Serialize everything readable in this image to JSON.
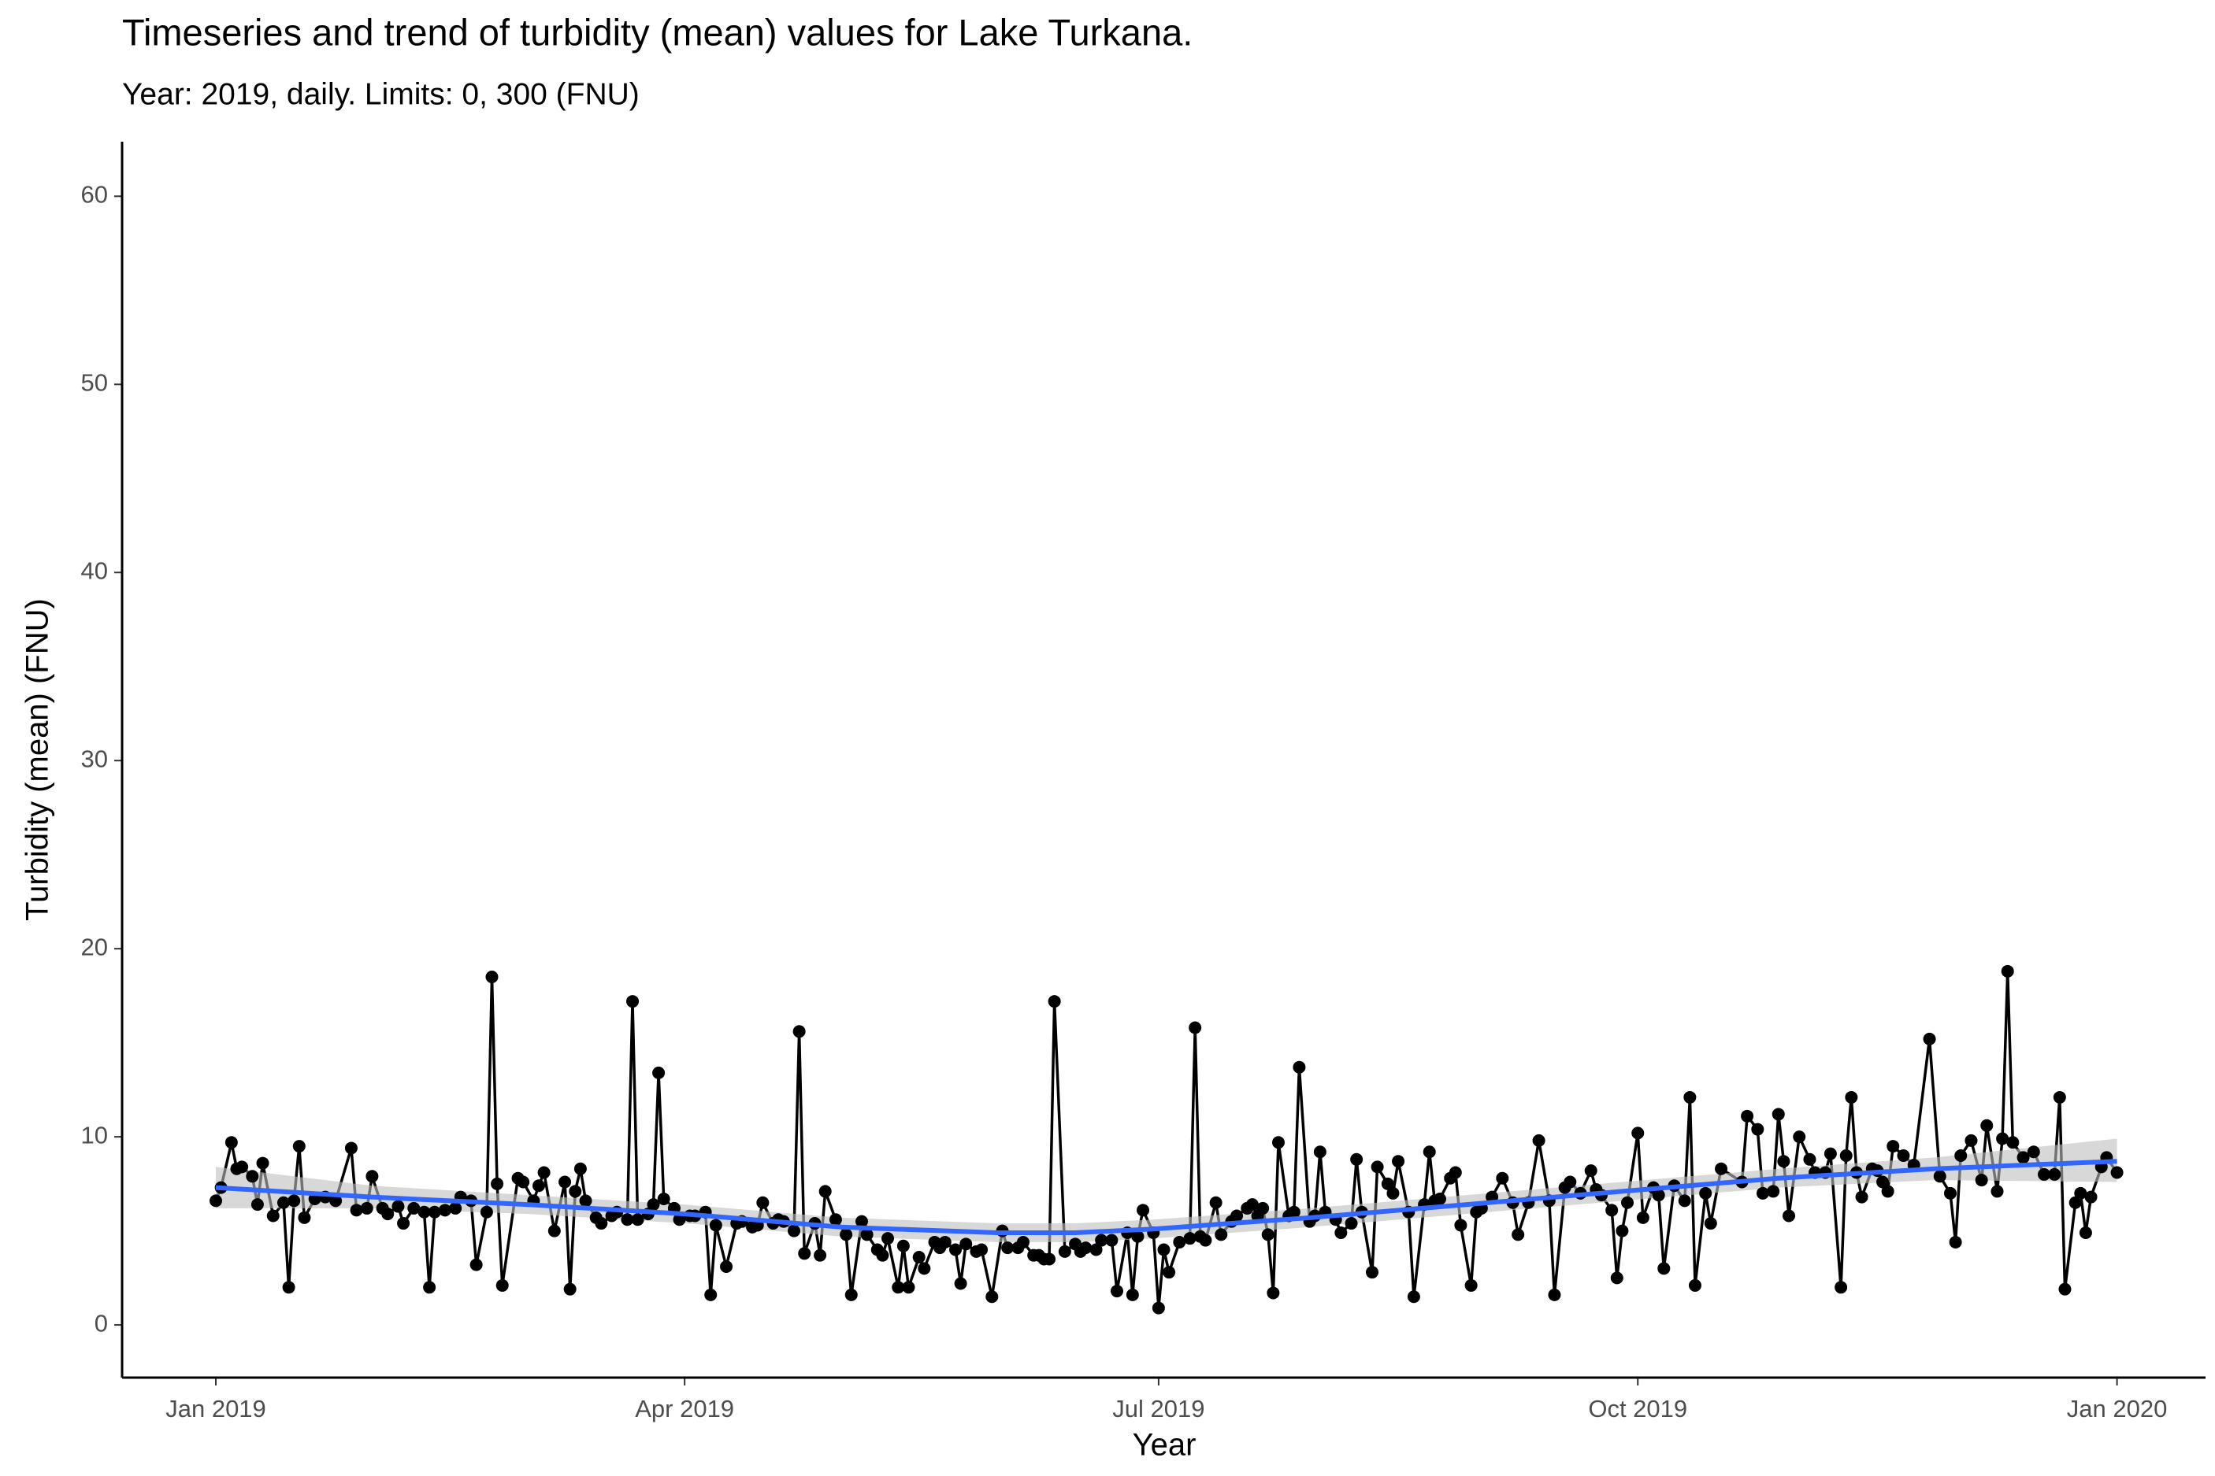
{
  "chart_data": {
    "type": "line",
    "title": "Timeseries and trend of turbidity (mean) values for Lake Turkana.",
    "subtitle": "Year: 2019, daily. Limits: 0, 300 (FNU)",
    "x_label": "Year",
    "y_label": "Turbidity (mean) (FNU)",
    "color": "#000000",
    "x": [
      0,
      1,
      3,
      4,
      5,
      7,
      8,
      9,
      11,
      13,
      14,
      15,
      16,
      17,
      19,
      21,
      23,
      26,
      27,
      29,
      30,
      32,
      33,
      35,
      36,
      38,
      40,
      41,
      42,
      44,
      46,
      47,
      49,
      50,
      52,
      53,
      54,
      55,
      58,
      59,
      61,
      62,
      63,
      65,
      67,
      68,
      69,
      70,
      71,
      73,
      74,
      76,
      77,
      79,
      80,
      81,
      83,
      84,
      85,
      86,
      88,
      89,
      91,
      92,
      94,
      95,
      96,
      98,
      100,
      101,
      103,
      104,
      105,
      107,
      108,
      109,
      111,
      112,
      113,
      115,
      116,
      117,
      119,
      121,
      122,
      124,
      125,
      127,
      128,
      129,
      131,
      132,
      133,
      135,
      136,
      138,
      139,
      140,
      142,
      143,
      144,
      146,
      147,
      149,
      151,
      152,
      154,
      155,
      157,
      158,
      159,
      160,
      161,
      163,
      165,
      166,
      167,
      169,
      170,
      172,
      173,
      175,
      176,
      177,
      178,
      180,
      181,
      182,
      183,
      185,
      187,
      188,
      189,
      190,
      192,
      193,
      195,
      196,
      198,
      199,
      200,
      201,
      202,
      203,
      204,
      206,
      207,
      208,
      210,
      211,
      212,
      213,
      215,
      216,
      218,
      219,
      220,
      222,
      223,
      225,
      226,
      227,
      229,
      230,
      232,
      233,
      234,
      235,
      237,
      238,
      239,
      241,
      242,
      243,
      245,
      247,
      249,
      250,
      252,
      254,
      256,
      257,
      259,
      260,
      262,
      264,
      265,
      266,
      268,
      269,
      270,
      271,
      273,
      274,
      276,
      277,
      278,
      280,
      282,
      283,
      284,
      286,
      287,
      289,
      293,
      294,
      296,
      297,
      299,
      300,
      301,
      302,
      304,
      306,
      307,
      309,
      310,
      312,
      313,
      314,
      315,
      316,
      318,
      319,
      320,
      321,
      322,
      324,
      326,
      329,
      331,
      333,
      334,
      335,
      337,
      339,
      340,
      342,
      343,
      344,
      345,
      347,
      349,
      351,
      353,
      354,
      355,
      357,
      358,
      359,
      360,
      362,
      363,
      365
    ],
    "values": [
      6.6,
      7.3,
      9.7,
      8.3,
      8.4,
      7.9,
      6.4,
      8.6,
      5.8,
      6.5,
      2.0,
      6.6,
      9.5,
      5.7,
      6.7,
      6.8,
      6.6,
      9.4,
      6.1,
      6.2,
      7.9,
      6.2,
      5.9,
      6.3,
      5.4,
      6.2,
      6.0,
      2.0,
      6.0,
      6.1,
      6.2,
      6.8,
      6.6,
      3.2,
      6.0,
      18.5,
      7.5,
      2.1,
      7.8,
      7.6,
      6.6,
      7.4,
      8.1,
      5.0,
      7.6,
      1.9,
      7.1,
      8.3,
      6.6,
      5.7,
      5.4,
      5.8,
      6.0,
      5.6,
      17.2,
      5.6,
      5.9,
      6.4,
      13.4,
      6.7,
      6.2,
      5.6,
      5.8,
      5.8,
      6.0,
      1.6,
      5.3,
      3.1,
      5.4,
      5.5,
      5.2,
      5.3,
      6.5,
      5.4,
      5.6,
      5.5,
      5.0,
      15.6,
      3.8,
      5.4,
      3.7,
      7.1,
      5.6,
      4.8,
      1.6,
      5.5,
      4.8,
      4.0,
      3.7,
      4.6,
      2.0,
      4.2,
      2.0,
      3.6,
      3.0,
      4.4,
      4.1,
      4.4,
      4.0,
      2.2,
      4.3,
      3.9,
      4.0,
      1.5,
      5.0,
      4.1,
      4.1,
      4.4,
      3.7,
      3.7,
      3.5,
      3.5,
      17.2,
      3.9,
      4.3,
      3.9,
      4.1,
      4.0,
      4.5,
      4.5,
      1.8,
      4.9,
      1.6,
      4.7,
      6.1,
      4.9,
      0.9,
      4.0,
      2.8,
      4.4,
      4.6,
      15.8,
      4.7,
      4.5,
      6.5,
      4.8,
      5.5,
      5.8,
      6.2,
      6.4,
      5.8,
      6.2,
      4.8,
      1.7,
      9.7,
      5.8,
      6.0,
      13.7,
      5.5,
      5.8,
      9.2,
      6.0,
      5.6,
      4.9,
      5.4,
      8.8,
      6.0,
      2.8,
      8.4,
      7.5,
      7.0,
      8.7,
      6.0,
      1.5,
      6.4,
      9.2,
      6.6,
      6.7,
      7.8,
      8.1,
      5.3,
      2.1,
      6.0,
      6.2,
      6.8,
      7.8,
      6.5,
      4.8,
      6.5,
      9.8,
      6.6,
      1.6,
      7.3,
      7.6,
      7.0,
      8.2,
      7.2,
      6.9,
      6.1,
      2.5,
      5.0,
      6.5,
      10.2,
      5.7,
      7.3,
      6.9,
      3.0,
      7.4,
      6.6,
      12.1,
      2.1,
      7.0,
      5.4,
      8.3,
      7.6,
      11.1,
      10.4,
      7.0,
      7.1,
      11.2,
      8.7,
      5.8,
      10.0,
      8.8,
      8.1,
      8.1,
      9.1,
      2.0,
      9.0,
      12.1,
      8.1,
      6.8,
      8.3,
      8.2,
      7.6,
      7.1,
      9.5,
      9.0,
      8.5,
      15.2,
      7.9,
      7.0,
      4.4,
      9.0,
      9.8,
      7.7,
      10.6,
      7.1,
      9.9,
      18.8,
      9.7,
      8.9,
      9.2,
      8.0,
      8.0,
      12.1,
      1.9,
      6.5,
      7.0,
      4.9,
      6.8,
      8.4,
      8.9,
      8.1
    ],
    "trend": {
      "color": "#3366ff",
      "band_color": "#bebebe",
      "x": [
        0,
        30,
        60,
        90,
        120,
        150,
        165,
        180,
        210,
        240,
        270,
        300,
        330,
        365
      ],
      "values": [
        7.3,
        6.8,
        6.4,
        5.9,
        5.2,
        4.9,
        4.9,
        5.1,
        5.7,
        6.4,
        7.1,
        7.8,
        8.3,
        8.7
      ],
      "lower": [
        6.2,
        6.2,
        5.9,
        5.4,
        4.7,
        4.4,
        4.4,
        4.6,
        5.2,
        5.9,
        6.6,
        7.3,
        7.7,
        7.6
      ],
      "upper": [
        8.4,
        7.4,
        6.9,
        6.4,
        5.7,
        5.4,
        5.4,
        5.6,
        6.2,
        6.9,
        7.6,
        8.3,
        8.9,
        9.9
      ]
    },
    "xlim": [
      -18,
      382
    ],
    "ylim": [
      -2.8,
      62.9
    ],
    "xticks": [
      {
        "value": 0,
        "label": "Jan 2019"
      },
      {
        "value": 90,
        "label": "Apr 2019"
      },
      {
        "value": 181,
        "label": "Jul 2019"
      },
      {
        "value": 273,
        "label": "Oct 2019"
      },
      {
        "value": 365,
        "label": "Jan 2020"
      }
    ],
    "yticks": [
      0,
      10,
      20,
      30,
      40,
      50,
      60
    ],
    "grid": false
  }
}
